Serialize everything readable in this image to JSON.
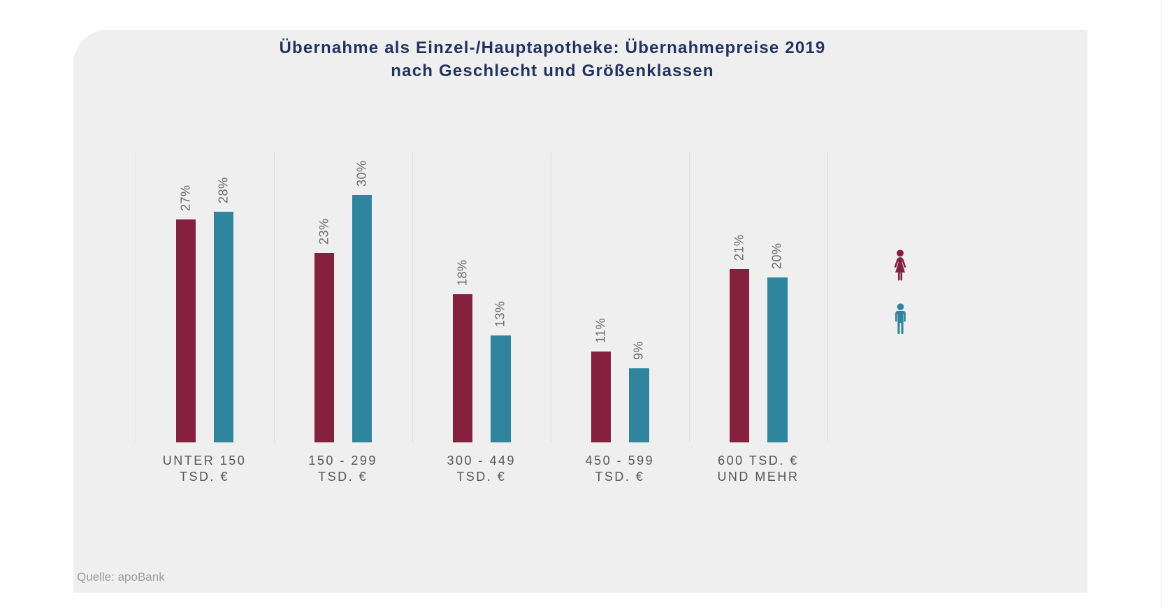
{
  "title": {
    "line1": "Übernahme als Einzel-/Hauptapotheke: Übernahmepreise 2019",
    "line2": "nach Geschlecht und Größenklassen"
  },
  "source": "Quelle: apoBank",
  "colors": {
    "female": "#85203E",
    "male": "#30859E",
    "title": "#233361",
    "panel_background": "#EFEFEF",
    "value_label": "#6B6B6B",
    "category_label": "#565656",
    "gridline": "#DDDDDD",
    "source_text": "#9D9D9D"
  },
  "legend": {
    "position": "right",
    "items": [
      {
        "icon": "female-icon",
        "series": "female",
        "color": "#85203E"
      },
      {
        "icon": "male-icon",
        "series": "male",
        "color": "#30859E"
      }
    ]
  },
  "chart_data": {
    "type": "bar",
    "title": "Übernahme als Einzel-/Hauptapotheke: Übernahmepreise 2019 nach Geschlecht und Größenklassen",
    "categories": [
      "UNTER 150\nTSD. €",
      "150 - 299\nTSD. €",
      "300 - 449\nTSD. €",
      "450 - 599\nTSD. €",
      "600 TSD. €\nUND MEHR"
    ],
    "series": [
      {
        "name": "female",
        "values": [
          27,
          23,
          18,
          11,
          21
        ]
      },
      {
        "name": "male",
        "values": [
          28,
          30,
          13,
          9,
          20
        ]
      }
    ],
    "unit": "%",
    "value_labels": true,
    "ylim": [
      0,
      35
    ],
    "grid": "vertical-category-separators",
    "legend_position": "right",
    "source": "Quelle: apoBank"
  }
}
